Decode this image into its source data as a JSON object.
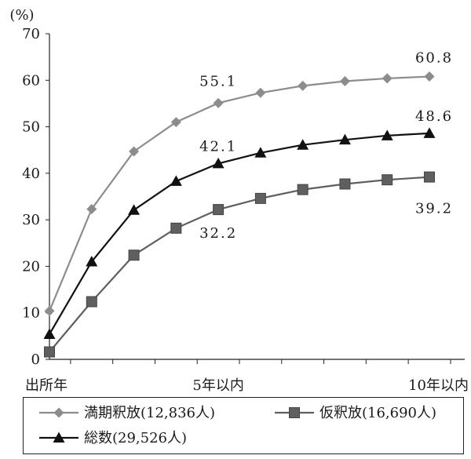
{
  "chart_data": {
    "type": "line",
    "y_unit_label": "(%)",
    "ylim": [
      0,
      70
    ],
    "y_ticks": [
      0,
      10,
      20,
      30,
      40,
      50,
      60,
      70
    ],
    "categories": [
      "出所年",
      "",
      "",
      "",
      "5年以内",
      "",
      "",
      "",
      "",
      "10年以内"
    ],
    "x_tick_labels": [
      "出所年",
      "5年以内",
      "10年以内"
    ],
    "grid": false,
    "legend_placement": "bottom",
    "series": [
      {
        "name": "満期釈放(12,836人)",
        "marker": "diamond",
        "color": "#8c8c8c",
        "values": [
          10.4,
          32.3,
          44.7,
          51.0,
          55.1,
          57.3,
          58.8,
          59.8,
          60.4,
          60.8
        ]
      },
      {
        "name": "仮釈放(16,690人)",
        "marker": "square",
        "color": "#5f5f5f",
        "values": [
          1.6,
          12.4,
          22.4,
          28.2,
          32.2,
          34.6,
          36.5,
          37.7,
          38.6,
          39.2
        ]
      },
      {
        "name": "総数(29,526人)",
        "marker": "triangle",
        "color": "#111111",
        "values": [
          5.4,
          21.0,
          32.1,
          38.3,
          42.1,
          44.4,
          46.1,
          47.2,
          48.1,
          48.6
        ]
      }
    ],
    "annotations": [
      {
        "text": "55.1",
        "series": 0,
        "index": 4
      },
      {
        "text": "60.8",
        "series": 0,
        "index": 9
      },
      {
        "text": "42.1",
        "series": 2,
        "index": 4
      },
      {
        "text": "48.6",
        "series": 2,
        "index": 9
      },
      {
        "text": "32.2",
        "series": 1,
        "index": 4
      },
      {
        "text": "39.2",
        "series": 1,
        "index": 9
      }
    ]
  }
}
